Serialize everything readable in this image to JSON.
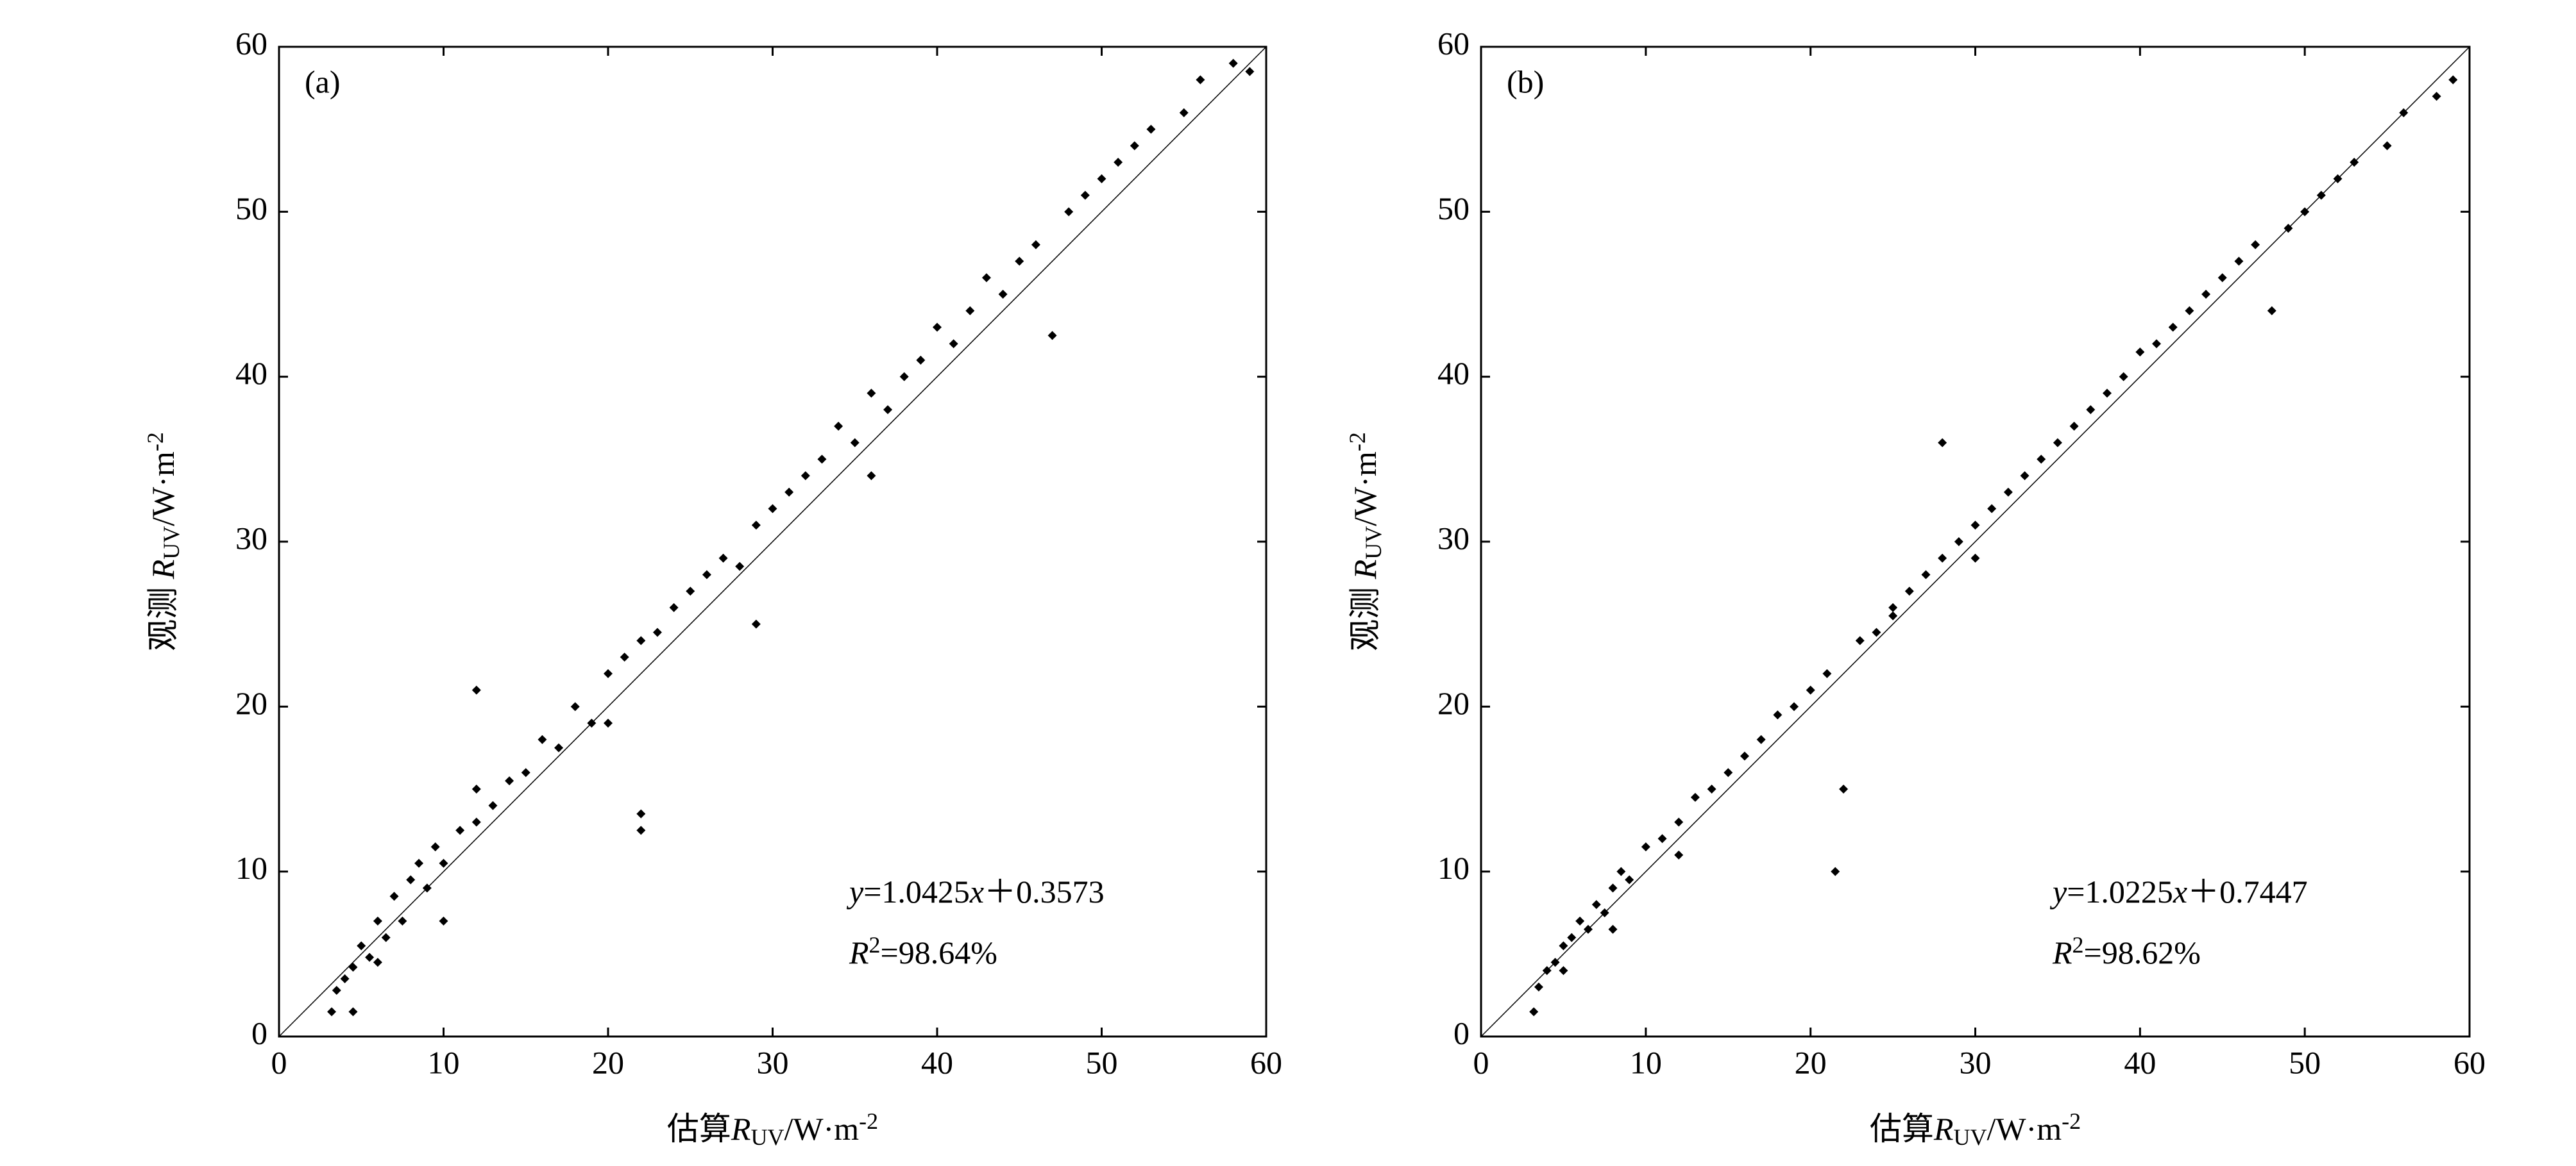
{
  "chart_data": [
    {
      "type": "scatter",
      "panel_label": "(a)",
      "xlabel": [
        "估算",
        "R",
        "UV",
        "/W·m",
        "-2"
      ],
      "ylabel": [
        "观测 ",
        "R",
        "UV",
        "/W·m",
        "-2"
      ],
      "equation": [
        "y",
        "=1.0425",
        "x",
        "＋0.3573"
      ],
      "r2": [
        "R",
        "2",
        "=98.64%"
      ],
      "xlim": [
        0,
        60
      ],
      "ylim": [
        0,
        60
      ],
      "xticks": [
        0,
        10,
        20,
        30,
        40,
        50,
        60
      ],
      "yticks": [
        0,
        10,
        20,
        30,
        40,
        50,
        60
      ],
      "color": "#000000",
      "x": [
        3.2,
        3.5,
        4,
        4.5,
        5,
        5.5,
        6,
        6.5,
        7,
        7.5,
        8,
        8.5,
        9,
        9.5,
        10,
        11,
        12,
        12,
        13,
        14,
        15,
        16,
        17,
        18,
        19,
        20,
        21,
        22,
        22,
        22,
        23,
        24,
        25,
        26,
        27,
        28,
        29,
        30,
        31,
        32,
        33,
        34,
        35,
        36,
        37,
        38,
        39,
        40,
        41,
        42,
        43,
        44,
        45,
        46,
        47,
        48,
        49,
        50,
        51,
        52,
        53,
        55,
        56,
        58,
        59,
        4.5,
        6,
        10,
        12,
        20,
        29,
        36
      ],
      "y": [
        1.5,
        2.8,
        3.5,
        4.2,
        5.5,
        4.8,
        7,
        6,
        8.5,
        7,
        9.5,
        10.5,
        9,
        11.5,
        10.5,
        12.5,
        13,
        21,
        14,
        15.5,
        16,
        18,
        17.5,
        20,
        19,
        22,
        23,
        13.5,
        12.5,
        24,
        24.5,
        26,
        27,
        28,
        29,
        28.5,
        31,
        32,
        33,
        34,
        35,
        37,
        36,
        39,
        38,
        40,
        41,
        43,
        42,
        44,
        46,
        45,
        47,
        48,
        42.5,
        50,
        51,
        52,
        53,
        54,
        55,
        56,
        58,
        59,
        58.5,
        1.5,
        4.5,
        7,
        15,
        19,
        25,
        34
      ]
    },
    {
      "type": "scatter",
      "panel_label": "(b)",
      "xlabel": [
        "估算",
        "R",
        "UV",
        "/W·m",
        "-2"
      ],
      "ylabel": [
        "观测 ",
        "R",
        "UV",
        "/W·m",
        "-2"
      ],
      "equation": [
        "y",
        "=1.0225",
        "x",
        "＋0.7447"
      ],
      "r2": [
        "R",
        "2",
        "=98.62%"
      ],
      "xlim": [
        0,
        60
      ],
      "ylim": [
        0,
        60
      ],
      "xticks": [
        0,
        10,
        20,
        30,
        40,
        50,
        60
      ],
      "yticks": [
        0,
        10,
        20,
        30,
        40,
        50,
        60
      ],
      "color": "#000000",
      "x": [
        3.2,
        3.5,
        4,
        4.5,
        5,
        5.5,
        6,
        6.5,
        7,
        7.5,
        8,
        8.5,
        9,
        10,
        11,
        12,
        13,
        14,
        15,
        16,
        17,
        18,
        19,
        20,
        21,
        21.5,
        22,
        23,
        24,
        25,
        26,
        27,
        28,
        28,
        29,
        30,
        31,
        32,
        33,
        34,
        35,
        36,
        37,
        38,
        39,
        40,
        41,
        42,
        43,
        44,
        45,
        46,
        47,
        48,
        49,
        50,
        51,
        52,
        53,
        55,
        56,
        58,
        59,
        5,
        8,
        12,
        25,
        30
      ],
      "y": [
        1.5,
        3,
        4,
        4.5,
        5.5,
        6,
        7,
        6.5,
        8,
        7.5,
        9,
        10,
        9.5,
        11.5,
        12,
        13,
        14.5,
        15,
        16,
        17,
        18,
        19.5,
        20,
        21,
        22,
        10,
        15,
        24,
        24.5,
        25.5,
        27,
        28,
        36,
        29,
        30,
        31,
        32,
        33,
        34,
        35,
        36,
        37,
        38,
        39,
        40,
        41.5,
        42,
        43,
        44,
        45,
        46,
        47,
        48,
        44,
        49,
        50,
        51,
        52,
        53,
        54,
        56,
        57,
        58,
        4,
        6.5,
        11,
        26,
        29
      ]
    }
  ]
}
